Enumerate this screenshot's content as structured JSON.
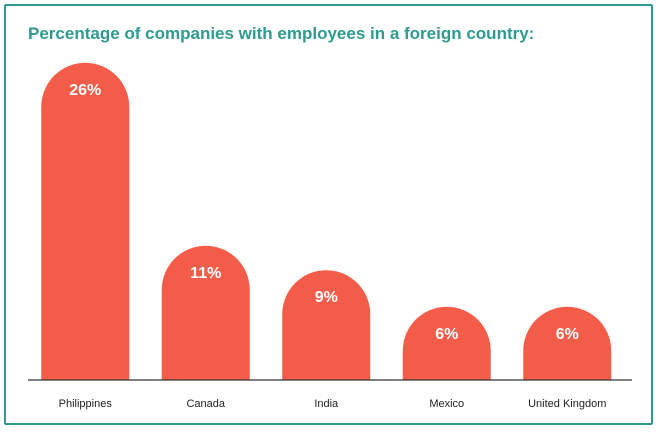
{
  "chart_data": {
    "type": "bar",
    "title": "Percentage of companies with employees in a foreign country:",
    "categories": [
      "Philippines",
      "Canada",
      "India",
      "Mexico",
      "United Kingdom"
    ],
    "values": [
      26,
      11,
      9,
      6,
      6
    ],
    "value_labels": [
      "26%",
      "11%",
      "9%",
      "6%",
      "6%"
    ],
    "xlabel": "",
    "ylabel": "",
    "grid": false,
    "legend": "none"
  },
  "colors": {
    "bar": "#f25c48",
    "title": "#2f9a8f",
    "border": "#2f9a8f",
    "axis": "#333333",
    "category_text": "#222222",
    "value_text": "#ffffff"
  }
}
